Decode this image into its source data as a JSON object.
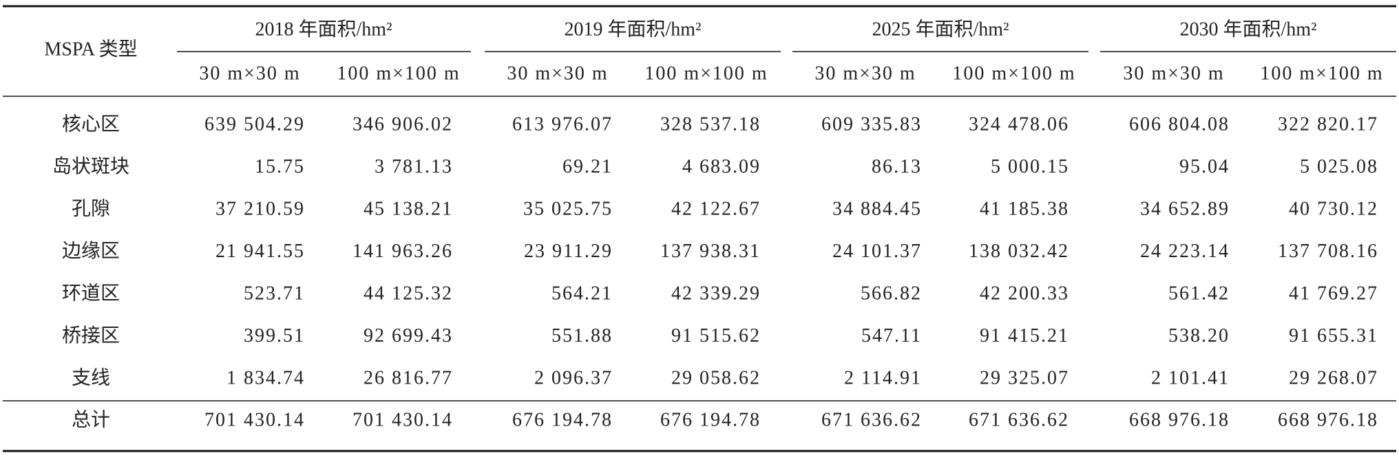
{
  "table": {
    "corner": "MSPA 类型",
    "groups": [
      "2018 年面积/hm²",
      "2019 年面积/hm²",
      "2025 年面积/hm²",
      "2030 年面积/hm²"
    ],
    "subheaders": [
      "30 m×30 m",
      "100 m×100 m",
      "30 m×30 m",
      "100 m×100 m",
      "30 m×30 m",
      "100 m×100 m",
      "30 m×30 m",
      "100 m×100 m"
    ],
    "rows": [
      [
        "核心区",
        "639 504.29",
        "346 906.02",
        "613 976.07",
        "328 537.18",
        "609 335.83",
        "324 478.06",
        "606 804.08",
        "322 820.17"
      ],
      [
        "岛状斑块",
        "15.75",
        "3 781.13",
        "69.21",
        "4 683.09",
        "86.13",
        "5 000.15",
        "95.04",
        "5 025.08"
      ],
      [
        "孔隙",
        "37 210.59",
        "45 138.21",
        "35 025.75",
        "42 122.67",
        "34 884.45",
        "41 185.38",
        "34 652.89",
        "40 730.12"
      ],
      [
        "边缘区",
        "21 941.55",
        "141 963.26",
        "23 911.29",
        "137 938.31",
        "24 101.37",
        "138 032.42",
        "24 223.14",
        "137 708.16"
      ],
      [
        "环道区",
        "523.71",
        "44 125.32",
        "564.21",
        "42 339.29",
        "566.82",
        "42 200.33",
        "561.42",
        "41 769.27"
      ],
      [
        "桥接区",
        "399.51",
        "92 699.43",
        "551.88",
        "91 515.62",
        "547.11",
        "91 415.21",
        "538.20",
        "91 655.31"
      ],
      [
        "支线",
        "1 834.74",
        "26 816.77",
        "2 096.37",
        "29 058.62",
        "2 114.91",
        "29 325.07",
        "2 101.41",
        "29 268.07"
      ]
    ],
    "total": [
      "总计",
      "701 430.14",
      "701 430.14",
      "676 194.78",
      "676 194.78",
      "671 636.62",
      "671 636.62",
      "668 976.18",
      "668 976.18"
    ]
  }
}
